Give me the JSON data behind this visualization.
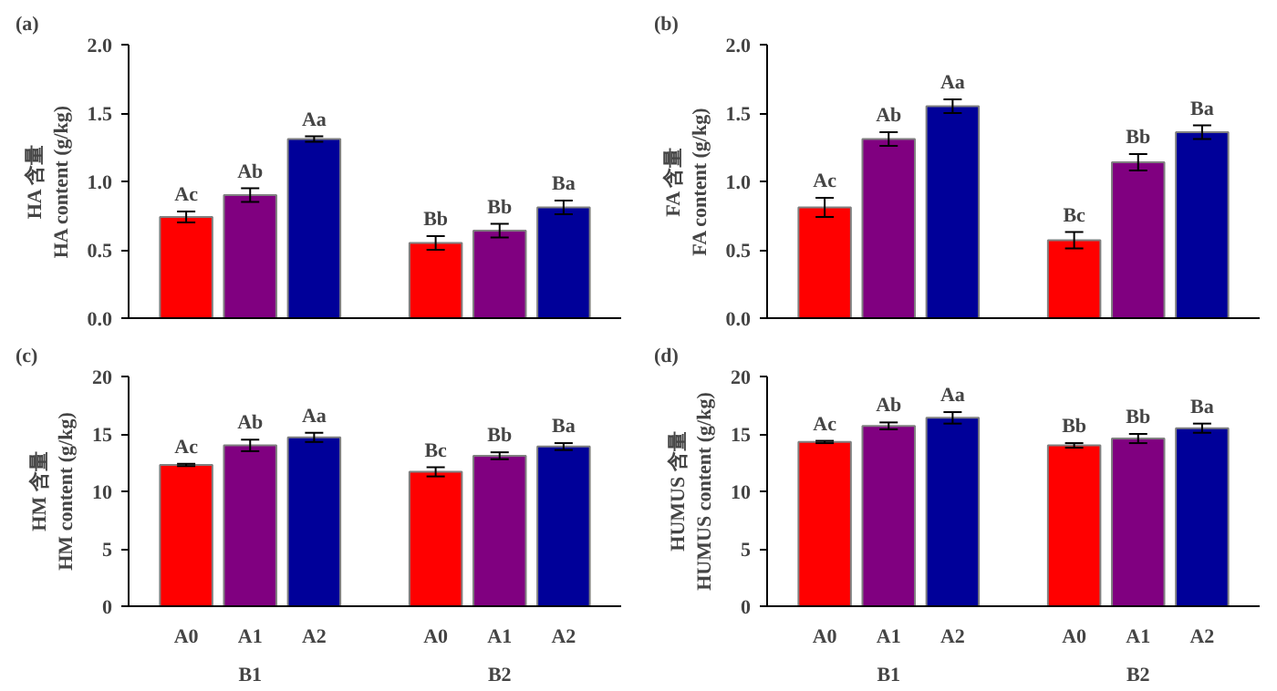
{
  "chart_data": [
    {
      "type": "bar",
      "title": "(a)",
      "ylabel": "HA 含量\nHA content (g/kg)",
      "categories": [
        null,
        null,
        null,
        null,
        null,
        null
      ],
      "values": [
        0.74,
        0.9,
        1.31,
        0.55,
        0.64,
        0.81
      ],
      "errors": [
        0.04,
        0.05,
        0.02,
        0.05,
        0.05,
        0.05
      ],
      "colors": [
        "#ff0000",
        "#800080",
        "#000099",
        "#ff0000",
        "#800080",
        "#000099"
      ],
      "value_labels": [
        "Ac",
        "Ab",
        "Aa",
        "Bb",
        "Bb",
        "Ba"
      ],
      "ylim": [
        0,
        2
      ],
      "yticks": [
        {
          "value": 0,
          "label": "0.0"
        },
        {
          "value": 0.5,
          "label": "0.5"
        },
        {
          "value": 1,
          "label": "1.0"
        },
        {
          "value": 1.5,
          "label": "1.5"
        },
        {
          "value": 2,
          "label": "2.0"
        }
      ],
      "tick_labels": "y"
    },
    {
      "type": "bar",
      "title": "(b)",
      "ylabel": "FA 含量\nFA content (g/kg)",
      "categories": [
        null,
        null,
        null,
        null,
        null,
        null
      ],
      "values": [
        0.81,
        1.31,
        1.55,
        0.57,
        1.14,
        1.36
      ],
      "errors": [
        0.07,
        0.05,
        0.05,
        0.06,
        0.06,
        0.05
      ],
      "colors": [
        "#ff0000",
        "#800080",
        "#000099",
        "#ff0000",
        "#800080",
        "#000099"
      ],
      "value_labels": [
        "Ac",
        "Ab",
        "Aa",
        "Bc",
        "Bb",
        "Ba"
      ],
      "ylim": [
        0,
        2
      ],
      "yticks": [
        {
          "value": 0,
          "label": "0.0"
        },
        {
          "value": 0.5,
          "label": "0.5"
        },
        {
          "value": 1,
          "label": "1.0"
        },
        {
          "value": 1.5,
          "label": "1.5"
        },
        {
          "value": 2,
          "label": "2.0"
        }
      ],
      "tick_labels": "y"
    },
    {
      "type": "bar",
      "title": "(c)",
      "ylabel": "HM 含量\nHM content (g/kg)",
      "categories": [
        "A0",
        "A1",
        "A2",
        "A0",
        "A1",
        "A2"
      ],
      "values": [
        12.3,
        14.0,
        14.7,
        11.7,
        13.1,
        13.9
      ],
      "errors": [
        0.1,
        0.5,
        0.4,
        0.4,
        0.3,
        0.3
      ],
      "colors": [
        "#ff0000",
        "#800080",
        "#000099",
        "#ff0000",
        "#800080",
        "#000099"
      ],
      "value_labels": [
        "Ac",
        "Ab",
        "Aa",
        "Bc",
        "Bb",
        "Ba"
      ],
      "ylim": [
        0,
        20
      ],
      "yticks": [
        0,
        5,
        10,
        15,
        20
      ],
      "annotations": [
        "B1",
        "B2"
      ]
    },
    {
      "type": "bar",
      "title": "(d)",
      "ylabel": "HUMUS 含量\nHUMUS content (g/kg)",
      "categories": [
        "A0",
        "A1",
        "A2",
        "A0",
        "A1",
        "A2"
      ],
      "values": [
        14.3,
        15.7,
        16.4,
        14.0,
        14.6,
        15.5
      ],
      "errors": [
        0.1,
        0.3,
        0.5,
        0.2,
        0.4,
        0.4
      ],
      "colors": [
        "#ff0000",
        "#800080",
        "#000099",
        "#ff0000",
        "#800080",
        "#000099"
      ],
      "value_labels": [
        "Ac",
        "Ab",
        "Aa",
        "Bb",
        "Bb",
        "Ba"
      ],
      "ylim": [
        0,
        20
      ],
      "yticks": [
        0,
        5,
        10,
        15,
        20
      ],
      "annotations": [
        "B1",
        "B2"
      ]
    }
  ]
}
